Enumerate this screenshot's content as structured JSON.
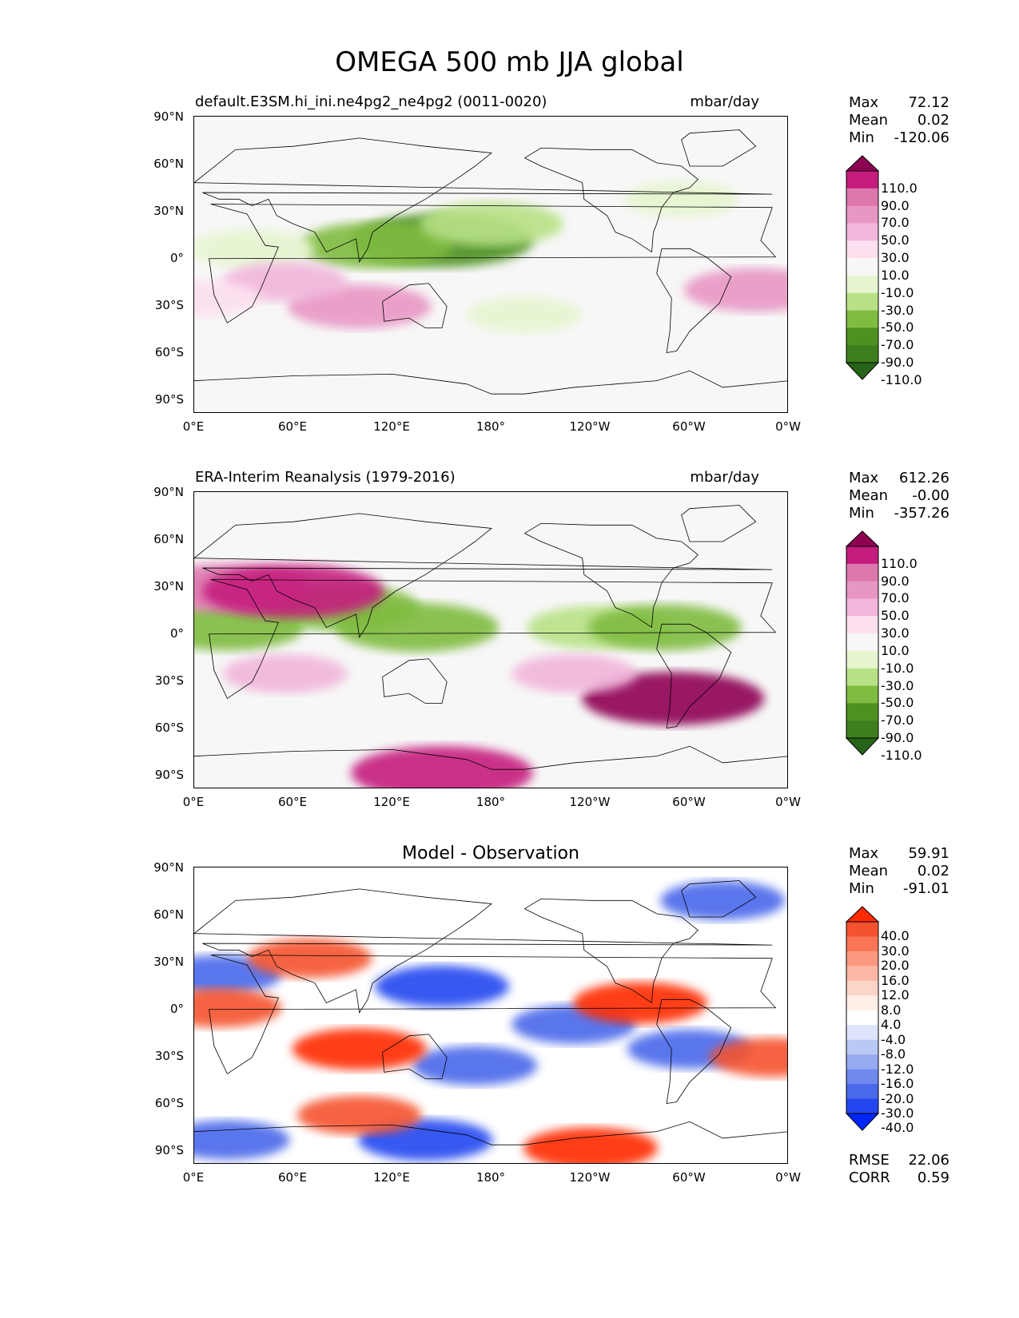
{
  "title": "OMEGA 500 mb JJA global",
  "panels": [
    {
      "title": "default.E3SM.hi_ini.ne4pg2_ne4pg2 (0011-0020)",
      "units": "mbar/day",
      "stats": [
        [
          "Max",
          "72.12"
        ],
        [
          "Mean",
          "0.02"
        ],
        [
          "Min",
          "-120.06"
        ]
      ],
      "colorbar": {
        "labels": [
          "110.0",
          "90.0",
          "70.0",
          "50.0",
          "30.0",
          "10.0",
          "-10.0",
          "-30.0",
          "-50.0",
          "-70.0",
          "-90.0",
          "-110.0"
        ],
        "colors": [
          "#8e0152",
          "#c51b7d",
          "#de77ae",
          "#e896c4",
          "#f1b6da",
          "#fde0ef",
          "#f7f7f7",
          "#e6f5d0",
          "#b8e186",
          "#7fbc41",
          "#4d9221",
          "#3d7e1d",
          "#276419"
        ]
      }
    },
    {
      "title": "ERA-Interim Reanalysis (1979-2016)",
      "units": "mbar/day",
      "stats": [
        [
          "Max",
          "612.26"
        ],
        [
          "Mean",
          "-0.00"
        ],
        [
          "Min",
          "-357.26"
        ]
      ],
      "colorbar": {
        "labels": [
          "110.0",
          "90.0",
          "70.0",
          "50.0",
          "30.0",
          "10.0",
          "-10.0",
          "-30.0",
          "-50.0",
          "-70.0",
          "-90.0",
          "-110.0"
        ],
        "colors": [
          "#8e0152",
          "#c51b7d",
          "#de77ae",
          "#e896c4",
          "#f1b6da",
          "#fde0ef",
          "#f7f7f7",
          "#e6f5d0",
          "#b8e186",
          "#7fbc41",
          "#4d9221",
          "#3d7e1d",
          "#276419"
        ]
      }
    },
    {
      "title": "Model - Observation",
      "units": "",
      "stats": [
        [
          "Max",
          "59.91"
        ],
        [
          "Mean",
          "0.02"
        ],
        [
          "Min",
          "-91.01"
        ]
      ],
      "extra_stats": [
        [
          "RMSE",
          "22.06"
        ],
        [
          "CORR",
          "0.59"
        ]
      ],
      "colorbar": {
        "labels": [
          "40.0",
          "30.0",
          "20.0",
          "16.0",
          "12.0",
          "8.0",
          "4.0",
          "-4.0",
          "-8.0",
          "-12.0",
          "-16.0",
          "-20.0",
          "-30.0",
          "-40.0"
        ],
        "colors": [
          "#ff2a00",
          "#f5522e",
          "#fa7555",
          "#fb9980",
          "#fcb8a5",
          "#fdd5c8",
          "#ffeee8",
          "#ffffff",
          "#dde4fb",
          "#bac8f6",
          "#96aaf1",
          "#6e88ec",
          "#4a68ea",
          "#2446f0",
          "#0026ff"
        ]
      }
    }
  ],
  "axes": {
    "lat_ticks": [
      "90°N",
      "60°N",
      "30°N",
      "0°",
      "30°S",
      "60°S",
      "90°S"
    ],
    "lon_ticks": [
      "0°E",
      "60°E",
      "120°E",
      "180°",
      "120°W",
      "60°W",
      "0°W"
    ]
  },
  "chart_data": [
    {
      "type": "heatmap",
      "title": "default.E3SM.hi_ini.ne4pg2_ne4pg2 (0011-0020)",
      "variable": "OMEGA 500 mb JJA global",
      "units": "mbar/day",
      "x_ticks": [
        "0°E",
        "60°E",
        "120°E",
        "180°",
        "120°W",
        "60°W",
        "0°W"
      ],
      "y_ticks": [
        "90°N",
        "60°N",
        "30°N",
        "0°",
        "30°S",
        "60°S",
        "90°S"
      ],
      "xlim": [
        0,
        360
      ],
      "ylim": [
        -90,
        90
      ],
      "levels": [
        -110,
        -90,
        -70,
        -50,
        -30,
        -10,
        10,
        30,
        50,
        70,
        90,
        110
      ],
      "stats": {
        "max": 72.12,
        "mean": 0.02,
        "min": -120.06
      },
      "features": [
        {
          "lon": 150,
          "lat": 15,
          "value": -90
        },
        {
          "lon": 110,
          "lat": 12,
          "value": -60
        },
        {
          "lon": 180,
          "lat": 25,
          "value": -50
        },
        {
          "lon": 35,
          "lat": 10,
          "value": -30
        },
        {
          "lon": 100,
          "lat": -25,
          "value": 50
        },
        {
          "lon": 55,
          "lat": -10,
          "value": 30
        },
        {
          "lon": 340,
          "lat": -15,
          "value": 50
        },
        {
          "lon": 200,
          "lat": -30,
          "value": -20
        },
        {
          "lon": 295,
          "lat": 40,
          "value": -20
        },
        {
          "lon": 5,
          "lat": -20,
          "value": 20
        }
      ]
    },
    {
      "type": "heatmap",
      "title": "ERA-Interim Reanalysis (1979-2016)",
      "variable": "OMEGA 500 mb JJA global",
      "units": "mbar/day",
      "x_ticks": [
        "0°E",
        "60°E",
        "120°E",
        "180°",
        "120°W",
        "60°W",
        "0°W"
      ],
      "y_ticks": [
        "90°N",
        "60°N",
        "30°N",
        "0°",
        "30°S",
        "60°S",
        "90°S"
      ],
      "xlim": [
        0,
        360
      ],
      "ylim": [
        -90,
        90
      ],
      "levels": [
        -110,
        -90,
        -70,
        -50,
        -30,
        -10,
        10,
        30,
        50,
        70,
        90,
        110
      ],
      "stats": {
        "max": 612.26,
        "mean": -0.0,
        "min": -357.26
      },
      "features": [
        {
          "lon": 135,
          "lat": 8,
          "value": -70
        },
        {
          "lon": 90,
          "lat": 20,
          "value": -60
        },
        {
          "lon": 20,
          "lat": 8,
          "value": -60
        },
        {
          "lon": 245,
          "lat": 8,
          "value": -50
        },
        {
          "lon": 285,
          "lat": 8,
          "value": -60
        },
        {
          "lon": 20,
          "lat": 32,
          "value": 70
        },
        {
          "lon": 60,
          "lat": 30,
          "value": 90
        },
        {
          "lon": 290,
          "lat": -35,
          "value": 110
        },
        {
          "lon": 150,
          "lat": -80,
          "value": 90
        },
        {
          "lon": 55,
          "lat": -20,
          "value": 30
        },
        {
          "lon": 230,
          "lat": -20,
          "value": 30
        }
      ]
    },
    {
      "type": "heatmap",
      "title": "Model - Observation",
      "variable": "OMEGA 500 mb JJA global",
      "x_ticks": [
        "0°E",
        "60°E",
        "120°E",
        "180°",
        "120°W",
        "60°W",
        "0°W"
      ],
      "y_ticks": [
        "90°N",
        "60°N",
        "30°N",
        "0°",
        "30°S",
        "60°S",
        "90°S"
      ],
      "xlim": [
        0,
        360
      ],
      "ylim": [
        -90,
        90
      ],
      "levels": [
        -40,
        -30,
        -20,
        -16,
        -12,
        -8,
        -4,
        4,
        8,
        12,
        16,
        20,
        30,
        40
      ],
      "stats": {
        "max": 59.91,
        "mean": 0.02,
        "min": -91.01,
        "rmse": 22.06,
        "corr": 0.59
      },
      "features": [
        {
          "lon": 150,
          "lat": 18,
          "value": -40
        },
        {
          "lon": 15,
          "lat": 25,
          "value": -30
        },
        {
          "lon": 140,
          "lat": -75,
          "value": -40
        },
        {
          "lon": 20,
          "lat": -75,
          "value": -30
        },
        {
          "lon": 170,
          "lat": -30,
          "value": -30
        },
        {
          "lon": 230,
          "lat": -5,
          "value": -30
        },
        {
          "lon": 300,
          "lat": -20,
          "value": -30
        },
        {
          "lon": 320,
          "lat": 70,
          "value": -30
        },
        {
          "lon": 270,
          "lat": 8,
          "value": 40
        },
        {
          "lon": 100,
          "lat": -20,
          "value": 40
        },
        {
          "lon": 240,
          "lat": -80,
          "value": 40
        },
        {
          "lon": 70,
          "lat": 35,
          "value": 30
        },
        {
          "lon": 15,
          "lat": 5,
          "value": 30
        },
        {
          "lon": 100,
          "lat": -60,
          "value": 30
        },
        {
          "lon": 350,
          "lat": -25,
          "value": 30
        }
      ]
    }
  ]
}
